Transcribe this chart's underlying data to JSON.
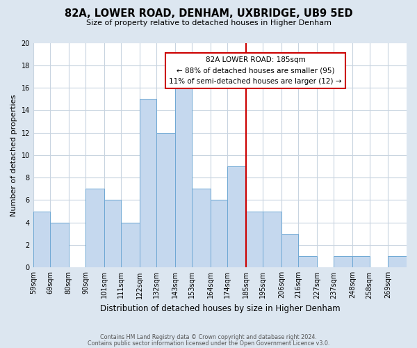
{
  "title": "82A, LOWER ROAD, DENHAM, UXBRIDGE, UB9 5ED",
  "subtitle": "Size of property relative to detached houses in Higher Denham",
  "xlabel": "Distribution of detached houses by size in Higher Denham",
  "ylabel": "Number of detached properties",
  "bin_labels": [
    "59sqm",
    "69sqm",
    "80sqm",
    "90sqm",
    "101sqm",
    "111sqm",
    "122sqm",
    "132sqm",
    "143sqm",
    "153sqm",
    "164sqm",
    "174sqm",
    "185sqm",
    "195sqm",
    "206sqm",
    "216sqm",
    "227sqm",
    "237sqm",
    "248sqm",
    "258sqm",
    "269sqm"
  ],
  "bin_edges": [
    59,
    69,
    80,
    90,
    101,
    111,
    122,
    132,
    143,
    153,
    164,
    174,
    185,
    195,
    206,
    216,
    227,
    237,
    248,
    258,
    269
  ],
  "counts": [
    5,
    4,
    0,
    7,
    6,
    4,
    15,
    12,
    16,
    7,
    6,
    9,
    5,
    5,
    3,
    1,
    0,
    1,
    1,
    0,
    1
  ],
  "bar_color": "#c5d8ee",
  "bar_edge_color": "#6fa8d4",
  "reference_line_x": 185,
  "reference_line_color": "#cc0000",
  "annotation_title": "82A LOWER ROAD: 185sqm",
  "annotation_line1": "← 88% of detached houses are smaller (95)",
  "annotation_line2": "11% of semi-detached houses are larger (12) →",
  "annotation_box_edge": "#cc0000",
  "ylim": [
    0,
    20
  ],
  "yticks": [
    0,
    2,
    4,
    6,
    8,
    10,
    12,
    14,
    16,
    18,
    20
  ],
  "footnote1": "Contains HM Land Registry data © Crown copyright and database right 2024.",
  "footnote2": "Contains public sector information licensed under the Open Government Licence v3.0.",
  "background_color": "#dce6f0",
  "plot_background_color": "#ffffff",
  "grid_color": "#c8d4e0"
}
